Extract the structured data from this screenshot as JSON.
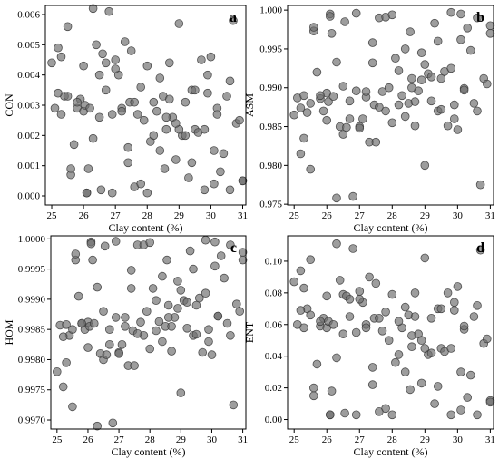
{
  "chart_data": [
    {
      "type": "scatter",
      "panel": "a",
      "xlabel": "Clay content (%)",
      "ylabel": "CON",
      "xlim": [
        24.8,
        31.1
      ],
      "ylim": [
        -0.0003,
        0.0063
      ],
      "xticks": [
        25,
        26,
        27,
        28,
        29,
        30,
        31
      ],
      "yticks": [
        0.0,
        0.001,
        0.002,
        0.003,
        0.004,
        0.005,
        0.006
      ],
      "ytick_labels": [
        "0.000",
        "0.001",
        "0.002",
        "0.003",
        "0.004",
        "0.005",
        "0.006"
      ],
      "x": [
        25.0,
        25.1,
        25.2,
        25.3,
        25.4,
        25.5,
        25.6,
        25.7,
        25.8,
        25.9,
        26.0,
        26.05,
        26.1,
        26.15,
        26.2,
        26.3,
        26.4,
        26.5,
        26.55,
        26.6,
        26.7,
        26.8,
        26.9,
        27.0,
        27.1,
        27.2,
        27.3,
        27.4,
        27.45,
        27.5,
        27.6,
        27.7,
        27.8,
        27.9,
        28.0,
        28.1,
        28.2,
        28.3,
        28.4,
        28.5,
        28.55,
        28.6,
        28.7,
        28.8,
        28.9,
        29.0,
        29.1,
        29.2,
        29.3,
        29.4,
        29.5,
        29.6,
        29.7,
        29.8,
        29.9,
        30.0,
        30.1,
        30.2,
        30.3,
        30.5,
        30.6,
        30.8,
        30.9,
        31.0,
        25.2,
        25.5,
        25.8,
        26.0,
        26.3,
        26.7,
        27.0,
        27.4,
        27.8,
        28.2,
        28.6,
        29.0,
        29.4,
        29.8,
        30.2,
        30.6,
        31.0,
        25.6,
        26.1,
        26.9,
        27.6,
        28.4,
        28.9,
        29.5,
        30.1,
        30.7,
        25.3,
        26.5,
        27.2,
        28.0,
        28.7,
        29.2,
        29.9,
        30.4
      ],
      "y": [
        0.0044,
        0.0029,
        0.0049,
        0.0027,
        0.0033,
        0.0056,
        0.0009,
        0.0017,
        0.0029,
        0.0032,
        0.0028,
        0.003,
        0.0001,
        0.0009,
        0.0029,
        0.0062,
        0.005,
        0.004,
        0.0002,
        0.0047,
        0.0035,
        0.0061,
        0.0027,
        0.0045,
        0.004,
        0.0029,
        0.0051,
        0.0016,
        0.0031,
        0.0048,
        0.0003,
        0.0027,
        0.0036,
        0.0025,
        0.0043,
        0.0018,
        0.002,
        0.0028,
        0.0039,
        0.0033,
        0.0009,
        0.0022,
        0.0044,
        0.0026,
        0.0012,
        0.0057,
        0.002,
        0.0031,
        0.0006,
        0.0035,
        0.0022,
        0.0021,
        0.0045,
        0.0002,
        0.0034,
        0.0046,
        0.0015,
        0.0027,
        0.0008,
        0.0033,
        0.0002,
        0.0024,
        0.0025,
        0.0005,
        0.0034,
        0.0033,
        0.0031,
        0.0043,
        0.0019,
        0.0044,
        0.0042,
        0.0011,
        0.0004,
        0.0031,
        0.0026,
        0.0022,
        0.0011,
        0.0022,
        0.0029,
        0.0038,
        0.0005,
        0.0007,
        0.0001,
        0.0001,
        0.0031,
        0.0015,
        0.0024,
        0.0035,
        0.0004,
        0.0058,
        0.0046,
        0.0026,
        0.0028,
        0.0001,
        0.0032,
        0.002,
        0.004,
        0.0014
      ]
    },
    {
      "type": "scatter",
      "panel": "b",
      "xlabel": "Clay content (%)",
      "ylabel": "ASM",
      "xlim": [
        24.8,
        31.1
      ],
      "ylim": [
        0.9749,
        1.0006
      ],
      "xticks": [
        25,
        26,
        27,
        28,
        29,
        30,
        31
      ],
      "yticks": [
        0.975,
        0.98,
        0.985,
        0.99,
        0.995,
        1.0
      ],
      "ytick_labels": [
        "0.975",
        "0.980",
        "0.985",
        "0.990",
        "0.995",
        "1.000"
      ],
      "x": [
        25.0,
        25.1,
        25.2,
        25.3,
        25.4,
        25.5,
        25.6,
        25.7,
        25.8,
        25.9,
        26.0,
        26.05,
        26.1,
        26.15,
        26.2,
        26.3,
        26.4,
        26.5,
        26.55,
        26.6,
        26.7,
        26.8,
        26.9,
        27.0,
        27.1,
        27.2,
        27.3,
        27.4,
        27.45,
        27.5,
        27.6,
        27.7,
        27.8,
        27.9,
        28.0,
        28.1,
        28.2,
        28.3,
        28.4,
        28.5,
        28.55,
        28.6,
        28.7,
        28.8,
        28.9,
        29.0,
        29.1,
        29.2,
        29.3,
        29.4,
        29.5,
        29.6,
        29.7,
        29.8,
        29.9,
        30.0,
        30.1,
        30.2,
        30.3,
        30.5,
        30.6,
        30.8,
        30.9,
        31.0,
        25.2,
        25.5,
        25.8,
        26.0,
        26.3,
        26.7,
        27.0,
        27.4,
        27.8,
        28.2,
        28.6,
        29.0,
        29.4,
        29.8,
        30.2,
        30.6,
        31.0,
        25.6,
        26.1,
        26.9,
        27.6,
        28.4,
        28.9,
        29.5,
        30.1,
        30.7,
        25.3,
        26.5,
        27.2,
        28.0,
        28.7,
        29.2,
        29.9,
        30.4
      ],
      "y": [
        0.9865,
        0.9887,
        0.9815,
        0.989,
        0.9868,
        0.9795,
        0.9973,
        0.992,
        0.9886,
        0.987,
        0.9893,
        0.9882,
        0.9995,
        0.997,
        0.9889,
        0.9758,
        0.985,
        0.984,
        0.9985,
        0.9849,
        0.9883,
        0.976,
        0.9896,
        0.985,
        0.986,
        0.9888,
        0.983,
        0.9932,
        0.9878,
        0.983,
        0.999,
        0.9895,
        0.987,
        0.99,
        0.9855,
        0.9938,
        0.9922,
        0.989,
        0.9863,
        0.988,
        0.9972,
        0.9912,
        0.9851,
        0.9896,
        0.9945,
        0.98,
        0.9918,
        0.9883,
        0.9983,
        0.987,
        0.9912,
        0.9921,
        0.9851,
        0.9997,
        0.9878,
        0.9846,
        0.9962,
        0.9899,
        0.9977,
        0.988,
        0.999,
        0.9912,
        0.9905,
        0.997,
        0.9874,
        0.988,
        0.989,
        0.9858,
        0.9933,
        0.986,
        0.9848,
        0.9958,
        0.9991,
        0.9878,
        0.99,
        0.993,
        0.996,
        0.9925,
        0.9897,
        0.987,
        0.998,
        0.9978,
        0.9992,
        0.9996,
        0.9875,
        0.995,
        0.991,
        0.9872,
        0.9995,
        0.9775,
        0.9835,
        0.9902,
        0.9895,
        0.9994,
        0.9882,
        0.9914,
        0.986,
        0.9948
      ]
    },
    {
      "type": "scatter",
      "panel": "c",
      "xlabel": "Clay content (%)",
      "ylabel": "HOM",
      "xlim": [
        24.8,
        31.1
      ],
      "ylim": [
        0.99685,
        1.00005
      ],
      "xticks": [
        25,
        26,
        27,
        28,
        29,
        30,
        31
      ],
      "yticks": [
        0.997,
        0.9975,
        0.998,
        0.9985,
        0.999,
        0.9995,
        1.0
      ],
      "ytick_labels": [
        "0.9970",
        "0.9975",
        "0.9980",
        "0.9985",
        "0.9990",
        "0.9995",
        "1.0000"
      ],
      "x": [
        25.0,
        25.1,
        25.2,
        25.3,
        25.4,
        25.5,
        25.6,
        25.7,
        25.8,
        25.9,
        26.0,
        26.05,
        26.1,
        26.15,
        26.2,
        26.3,
        26.4,
        26.5,
        26.55,
        26.6,
        26.7,
        26.8,
        26.9,
        27.0,
        27.1,
        27.2,
        27.3,
        27.4,
        27.45,
        27.5,
        27.6,
        27.7,
        27.8,
        27.9,
        28.0,
        28.1,
        28.2,
        28.3,
        28.4,
        28.5,
        28.55,
        28.6,
        28.7,
        28.8,
        28.9,
        29.0,
        29.1,
        29.2,
        29.3,
        29.4,
        29.5,
        29.6,
        29.7,
        29.8,
        29.9,
        30.0,
        30.1,
        30.2,
        30.3,
        30.5,
        30.6,
        30.8,
        30.9,
        31.0,
        25.2,
        25.5,
        25.8,
        26.0,
        26.3,
        26.7,
        27.0,
        27.4,
        27.8,
        28.2,
        28.6,
        29.0,
        29.4,
        29.8,
        30.2,
        30.6,
        31.0,
        25.6,
        26.1,
        26.9,
        27.6,
        28.4,
        28.9,
        29.5,
        30.1,
        30.7,
        25.3,
        26.5,
        27.2,
        28.0,
        28.7,
        29.2,
        29.9,
        30.4
      ],
      "y": [
        0.9978,
        0.99857,
        0.99755,
        0.99858,
        0.9984,
        0.99722,
        0.99965,
        0.99905,
        0.9986,
        0.9985,
        0.99862,
        0.99855,
        0.99995,
        0.99965,
        0.9986,
        0.9969,
        0.9981,
        0.998,
        0.99988,
        0.99808,
        0.9985,
        0.99695,
        0.9987,
        0.99812,
        0.99825,
        0.99855,
        0.9979,
        0.99918,
        0.99848,
        0.9979,
        0.9999,
        0.99862,
        0.9984,
        0.9988,
        0.99818,
        0.99918,
        0.99898,
        0.99863,
        0.9983,
        0.99855,
        0.99965,
        0.9989,
        0.99814,
        0.9987,
        0.9993,
        0.99745,
        0.99898,
        0.99852,
        0.9998,
        0.9984,
        0.9989,
        0.99902,
        0.99812,
        0.99998,
        0.9985,
        0.99808,
        0.99955,
        0.99872,
        0.99972,
        0.9986,
        0.9999,
        0.99892,
        0.9988,
        0.99965,
        0.99838,
        0.9985,
        0.9986,
        0.9982,
        0.9992,
        0.99825,
        0.9981,
        0.99948,
        0.9999,
        0.99848,
        0.9987,
        0.99915,
        0.9995,
        0.9991,
        0.99872,
        0.9984,
        0.99978,
        0.99975,
        0.99992,
        0.99996,
        0.99843,
        0.99938,
        0.99885,
        0.99842,
        0.99995,
        0.99725,
        0.99795,
        0.9988,
        0.9987,
        0.99994,
        0.99855,
        0.99895,
        0.9983,
        0.99935
      ]
    },
    {
      "type": "scatter",
      "panel": "d",
      "xlabel": "Clay content (%)",
      "ylabel": "ENT",
      "xlim": [
        24.8,
        31.1
      ],
      "ylim": [
        -0.006,
        0.116
      ],
      "xticks": [
        25,
        26,
        27,
        28,
        29,
        30,
        31
      ],
      "yticks": [
        0.0,
        0.02,
        0.04,
        0.06,
        0.08,
        0.1
      ],
      "ytick_labels": [
        "0.00",
        "0.02",
        "0.04",
        "0.06",
        "0.08",
        "0.10"
      ],
      "x": [
        25.0,
        25.1,
        25.2,
        25.3,
        25.4,
        25.5,
        25.6,
        25.7,
        25.8,
        25.9,
        26.0,
        26.05,
        26.1,
        26.15,
        26.2,
        26.3,
        26.4,
        26.5,
        26.55,
        26.6,
        26.7,
        26.8,
        26.9,
        27.0,
        27.1,
        27.2,
        27.3,
        27.4,
        27.45,
        27.5,
        27.6,
        27.7,
        27.8,
        27.9,
        28.0,
        28.1,
        28.2,
        28.3,
        28.4,
        28.5,
        28.55,
        28.6,
        28.7,
        28.8,
        28.9,
        29.0,
        29.1,
        29.2,
        29.3,
        29.4,
        29.5,
        29.6,
        29.7,
        29.8,
        29.9,
        30.0,
        30.1,
        30.2,
        30.3,
        30.5,
        30.6,
        30.8,
        30.9,
        31.0,
        25.2,
        25.5,
        25.8,
        26.0,
        26.3,
        26.7,
        27.0,
        27.4,
        27.8,
        28.2,
        28.6,
        29.0,
        29.4,
        29.8,
        30.2,
        30.6,
        31.0,
        25.6,
        26.1,
        26.9,
        27.6,
        28.4,
        28.9,
        29.5,
        30.1,
        30.7,
        25.3,
        26.5,
        27.2,
        28.0,
        28.7,
        29.2,
        29.9,
        30.4
      ],
      "y": [
        0.087,
        0.06,
        0.094,
        0.058,
        0.07,
        0.101,
        0.02,
        0.035,
        0.059,
        0.064,
        0.058,
        0.062,
        0.003,
        0.018,
        0.06,
        0.111,
        0.088,
        0.079,
        0.004,
        0.078,
        0.065,
        0.108,
        0.055,
        0.081,
        0.074,
        0.06,
        0.09,
        0.033,
        0.064,
        0.086,
        0.005,
        0.056,
        0.068,
        0.05,
        0.079,
        0.036,
        0.041,
        0.058,
        0.071,
        0.066,
        0.019,
        0.046,
        0.08,
        0.054,
        0.023,
        0.102,
        0.041,
        0.064,
        0.01,
        0.07,
        0.045,
        0.043,
        0.08,
        0.003,
        0.069,
        0.084,
        0.03,
        0.057,
        0.014,
        0.065,
        0.003,
        0.048,
        0.051,
        0.012,
        0.069,
        0.066,
        0.062,
        0.078,
        0.039,
        0.076,
        0.076,
        0.022,
        0.007,
        0.062,
        0.053,
        0.045,
        0.021,
        0.045,
        0.059,
        0.072,
        0.011,
        0.015,
        0.003,
        0.003,
        0.064,
        0.03,
        0.05,
        0.07,
        0.006,
        0.107,
        0.083,
        0.054,
        0.058,
        0.003,
        0.065,
        0.042,
        0.074,
        0.028
      ]
    }
  ]
}
